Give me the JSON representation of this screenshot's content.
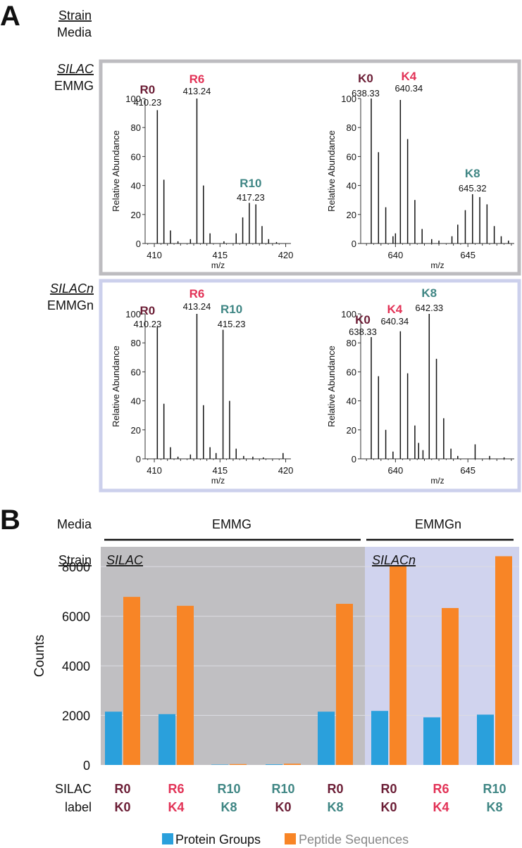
{
  "colors": {
    "r0": "#6b1d35",
    "r6": "#e23256",
    "r10": "#3f8684",
    "protein": "#2aa0dc",
    "peptide": "#f88526",
    "silac_bg": "#c0bfc2",
    "silacn_bg": "#d0d3ee",
    "silac_frame": "#bdbcc0",
    "silacn_frame": "#ccd0ec"
  },
  "panel_a": {
    "letter": "A",
    "header_strain": "Strain",
    "header_media": "Media",
    "rows": [
      {
        "strain": "SILAC",
        "media": "EMMG"
      },
      {
        "strain": "SILACn",
        "media": "EMMGn"
      }
    ]
  },
  "panel_b": {
    "letter": "B",
    "media_label": "Media",
    "strain_label": "Strain",
    "media_groups": [
      "EMMG",
      "EMMGn"
    ],
    "strain_groups": [
      "SILAC",
      "SILACn"
    ],
    "silac_label": [
      "SILAC",
      "label"
    ]
  },
  "chart_data": [
    {
      "type": "bar",
      "id": "spectrum-silac-arg",
      "xlabel": "m/z",
      "ylabel": "Relative Abundance",
      "xlim": [
        409.3,
        420.4
      ],
      "ylim": [
        0,
        100
      ],
      "xticks": [
        410,
        415,
        420
      ],
      "yticks": [
        0,
        20,
        40,
        60,
        80,
        100
      ],
      "peaks": [
        [
          410.23,
          92
        ],
        [
          410.73,
          44
        ],
        [
          411.23,
          9
        ],
        [
          411.8,
          1.5
        ],
        [
          412.75,
          3
        ],
        [
          413.24,
          100
        ],
        [
          413.74,
          40
        ],
        [
          414.24,
          7
        ],
        [
          415.3,
          1.5
        ],
        [
          416.23,
          7
        ],
        [
          416.73,
          18
        ],
        [
          417.23,
          28
        ],
        [
          417.73,
          27
        ],
        [
          418.2,
          12
        ],
        [
          418.7,
          3
        ],
        [
          419.3,
          1
        ]
      ],
      "labels": [
        {
          "tag": "R0",
          "mz": "410.23",
          "color": "r0"
        },
        {
          "tag": "R6",
          "mz": "413.24",
          "color": "r6"
        },
        {
          "tag": "R10",
          "mz": "417.23",
          "color": "r10"
        }
      ]
    },
    {
      "type": "bar",
      "id": "spectrum-silac-lys",
      "xlabel": "m/z",
      "ylabel": "Relative Abundance",
      "xlim": [
        637.6,
        648.2
      ],
      "ylim": [
        0,
        100
      ],
      "xticks": [
        640,
        645
      ],
      "yticks": [
        0,
        20,
        40,
        60,
        80,
        100
      ],
      "peaks": [
        [
          638.33,
          100
        ],
        [
          638.83,
          63
        ],
        [
          639.33,
          25
        ],
        [
          639.83,
          5
        ],
        [
          640.0,
          7
        ],
        [
          640.34,
          99
        ],
        [
          640.84,
          72
        ],
        [
          641.34,
          30
        ],
        [
          641.84,
          10
        ],
        [
          642.5,
          3
        ],
        [
          643.0,
          2
        ],
        [
          643.9,
          5
        ],
        [
          644.3,
          13
        ],
        [
          644.82,
          23
        ],
        [
          645.32,
          34
        ],
        [
          645.82,
          32
        ],
        [
          646.32,
          27
        ],
        [
          646.82,
          12
        ],
        [
          647.3,
          5
        ],
        [
          647.8,
          2
        ]
      ],
      "labels": [
        {
          "tag": "K0",
          "mz": "638.33",
          "color": "r0"
        },
        {
          "tag": "K4",
          "mz": "640.34",
          "color": "r6"
        },
        {
          "tag": "K8",
          "mz": "645.32",
          "color": "r10"
        }
      ]
    },
    {
      "type": "bar",
      "id": "spectrum-silacn-arg",
      "xlabel": "m/z",
      "ylabel": "Relative Abundance",
      "xlim": [
        409.3,
        420.4
      ],
      "ylim": [
        0,
        100
      ],
      "xticks": [
        410,
        415,
        420
      ],
      "yticks": [
        0,
        20,
        40,
        60,
        80,
        100
      ],
      "peaks": [
        [
          410.23,
          91
        ],
        [
          410.73,
          38
        ],
        [
          411.23,
          8
        ],
        [
          411.8,
          1.5
        ],
        [
          412.75,
          3
        ],
        [
          413.24,
          100
        ],
        [
          413.74,
          37
        ],
        [
          414.24,
          8
        ],
        [
          414.7,
          4
        ],
        [
          415.23,
          89
        ],
        [
          415.73,
          40
        ],
        [
          416.23,
          7
        ],
        [
          416.8,
          2
        ],
        [
          417.5,
          1.5
        ],
        [
          418.3,
          1
        ],
        [
          419.8,
          4
        ]
      ],
      "labels": [
        {
          "tag": "R0",
          "mz": "410.23",
          "color": "r0"
        },
        {
          "tag": "R6",
          "mz": "413.24",
          "color": "r6"
        },
        {
          "tag": "R10",
          "mz": "415.23",
          "color": "r10"
        }
      ]
    },
    {
      "type": "bar",
      "id": "spectrum-silacn-lys",
      "xlabel": "m/z",
      "ylabel": "Relative Abundance",
      "xlim": [
        637.6,
        648.2
      ],
      "ylim": [
        0,
        100
      ],
      "xticks": [
        640,
        645
      ],
      "yticks": [
        0,
        20,
        40,
        60,
        80,
        100
      ],
      "peaks": [
        [
          638.33,
          84
        ],
        [
          638.83,
          57
        ],
        [
          639.33,
          20
        ],
        [
          639.83,
          5
        ],
        [
          640.34,
          88
        ],
        [
          640.84,
          59
        ],
        [
          641.34,
          23
        ],
        [
          641.6,
          11
        ],
        [
          641.9,
          6
        ],
        [
          642.33,
          100
        ],
        [
          642.83,
          69
        ],
        [
          643.33,
          28
        ],
        [
          643.83,
          7
        ],
        [
          644.3,
          2
        ],
        [
          645.5,
          10
        ],
        [
          646.5,
          2
        ],
        [
          647.5,
          1
        ]
      ],
      "labels": [
        {
          "tag": "K0",
          "mz": "638.33",
          "color": "r0"
        },
        {
          "tag": "K4",
          "mz": "640.34",
          "color": "r6"
        },
        {
          "tag": "K8",
          "mz": "642.33",
          "color": "r10"
        }
      ]
    },
    {
      "type": "bar",
      "id": "counts-chart",
      "xlabel": "",
      "ylabel": "Counts",
      "ylim": [
        0,
        8800
      ],
      "yticks": [
        0,
        2000,
        4000,
        6000,
        8000
      ],
      "categories": [
        {
          "top": "R0",
          "bottom": "K0",
          "top_color": "r0",
          "bottom_color": "r0"
        },
        {
          "top": "R6",
          "bottom": "K4",
          "top_color": "r6",
          "bottom_color": "r6"
        },
        {
          "top": "R10",
          "bottom": "K8",
          "top_color": "r10",
          "bottom_color": "r10"
        },
        {
          "top": "R10",
          "bottom": "K0",
          "top_color": "r10",
          "bottom_color": "r0"
        },
        {
          "top": "R0",
          "bottom": "K8",
          "top_color": "r0",
          "bottom_color": "r10"
        },
        {
          "top": "R0",
          "bottom": "K0",
          "top_color": "r0",
          "bottom_color": "r0"
        },
        {
          "top": "R6",
          "bottom": "K4",
          "top_color": "r6",
          "bottom_color": "r6"
        },
        {
          "top": "R10",
          "bottom": "K8",
          "top_color": "r10",
          "bottom_color": "r10"
        }
      ],
      "series": [
        {
          "name": "Protein Groups",
          "color": "protein",
          "values": [
            2150,
            2050,
            15,
            25,
            2150,
            2180,
            1920,
            2030
          ]
        },
        {
          "name": "Peptide Sequences",
          "color": "peptide",
          "values": [
            6780,
            6420,
            35,
            50,
            6500,
            8010,
            6330,
            8420
          ]
        }
      ]
    }
  ]
}
